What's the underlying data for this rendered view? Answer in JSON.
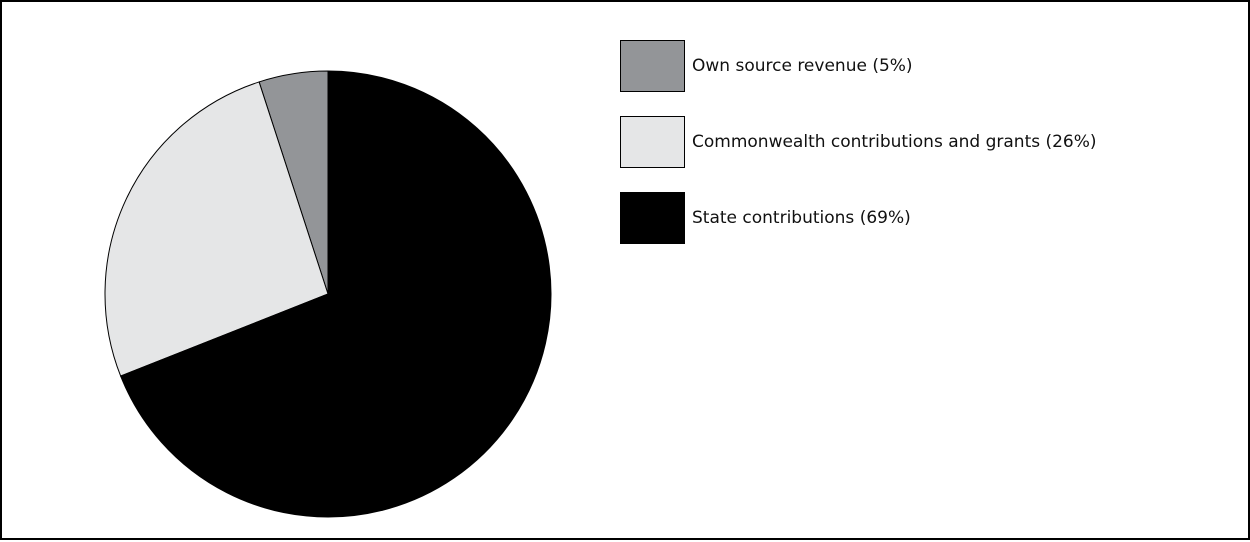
{
  "chart_data": {
    "type": "pie",
    "title": "",
    "legend_position": "top-right",
    "slices": [
      {
        "label": "Own source revenue (5%)",
        "value": 5,
        "color": "#939598"
      },
      {
        "label": "Commonwealth contributions and grants (26%)",
        "value": 26,
        "color": "#e5e6e7"
      },
      {
        "label": "State contributions (69%)",
        "value": 69,
        "color": "#000000"
      }
    ]
  }
}
